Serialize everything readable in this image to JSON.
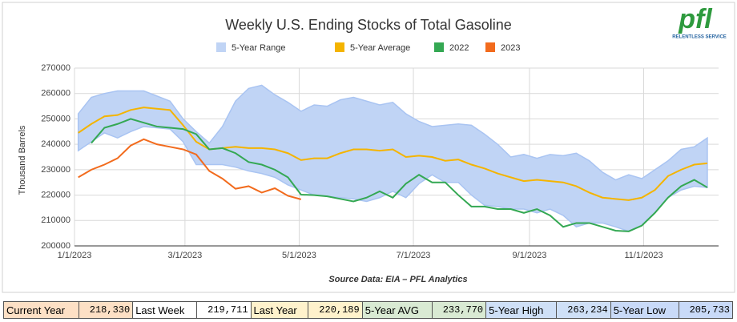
{
  "chart_data": {
    "type": "line",
    "title": "Weekly U.S. Ending Stocks of Total Gasoline",
    "y_label": "Thousand Barrels",
    "source": "Source Data: EIA – PFL Analytics",
    "logo": {
      "text": "pfl",
      "tagline": "RELENTLESS SERVICE"
    },
    "x": [
      "2023-01-03",
      "2023-01-10",
      "2023-01-17",
      "2023-01-24",
      "2023-01-31",
      "2023-02-07",
      "2023-02-14",
      "2023-02-21",
      "2023-02-28",
      "2023-03-07",
      "2023-03-14",
      "2023-03-21",
      "2023-03-28",
      "2023-04-04",
      "2023-04-11",
      "2023-04-18",
      "2023-04-25",
      "2023-05-02",
      "2023-05-09",
      "2023-05-16",
      "2023-05-23",
      "2023-05-30",
      "2023-06-06",
      "2023-06-13",
      "2023-06-20",
      "2023-06-27",
      "2023-07-04",
      "2023-07-11",
      "2023-07-18",
      "2023-07-25",
      "2023-08-01",
      "2023-08-08",
      "2023-08-15",
      "2023-08-22",
      "2023-08-29",
      "2023-09-05",
      "2023-09-12",
      "2023-09-19",
      "2023-09-26",
      "2023-10-03",
      "2023-10-10",
      "2023-10-17",
      "2023-10-24",
      "2023-10-31",
      "2023-11-07",
      "2023-11-14",
      "2023-11-21",
      "2023-11-28",
      "2023-12-05"
    ],
    "xlim": [
      "2023-01-01",
      "2023-12-11"
    ],
    "xticks": [
      {
        "value": "2023-01-01",
        "label": "1/1/2023"
      },
      {
        "value": "2023-03-01",
        "label": "3/1/2023"
      },
      {
        "value": "2023-05-01",
        "label": "5/1/2023"
      },
      {
        "value": "2023-07-01",
        "label": "7/1/2023"
      },
      {
        "value": "2023-09-01",
        "label": "9/1/2023"
      },
      {
        "value": "2023-11-01",
        "label": "11/1/2023"
      }
    ],
    "ylim": [
      200000,
      270000
    ],
    "yticks": [
      200000,
      210000,
      220000,
      230000,
      240000,
      250000,
      260000,
      270000
    ],
    "grid": true,
    "legend": "top",
    "range": {
      "name": "5-Year Range",
      "color": "#c0d4f5",
      "stroke": "#a9c4f2",
      "upper": [
        252000,
        258500,
        260000,
        261000,
        261000,
        261000,
        259000,
        257000,
        250000,
        245000,
        240500,
        247000,
        257000,
        262000,
        263234,
        259500,
        256500,
        253000,
        255500,
        255000,
        257500,
        258500,
        257000,
        255500,
        256500,
        252000,
        249000,
        247000,
        247500,
        248000,
        247500,
        244000,
        240000,
        235000,
        236000,
        234500,
        236000,
        235500,
        236500,
        233500,
        229000,
        226000,
        228000,
        226500,
        230000,
        233500,
        238000,
        239000,
        242500
      ],
      "lower": [
        237500,
        241000,
        244500,
        242500,
        245000,
        247000,
        246500,
        246000,
        241000,
        232000,
        232000,
        232000,
        231000,
        229500,
        228500,
        227000,
        224000,
        222000,
        220000,
        219500,
        219000,
        218500,
        217500,
        219000,
        221500,
        219000,
        224500,
        228000,
        225000,
        225000,
        220000,
        216000,
        215500,
        214500,
        214500,
        213000,
        214500,
        212000,
        207500,
        209000,
        209000,
        207500,
        205733,
        208000,
        213000,
        219000,
        222000,
        223500,
        223000
      ]
    },
    "series": [
      {
        "name": "5-Year Average",
        "color": "#f4b400",
        "values": [
          244500,
          248000,
          251000,
          251500,
          253500,
          254500,
          254000,
          253500,
          247500,
          241000,
          238000,
          238500,
          239000,
          238500,
          238500,
          238000,
          236500,
          233770,
          234500,
          234500,
          236500,
          238000,
          238000,
          237500,
          238000,
          235000,
          235500,
          235000,
          233500,
          234000,
          232000,
          230500,
          228500,
          227000,
          225500,
          226000,
          225500,
          225000,
          223500,
          221000,
          219000,
          218500,
          218000,
          219000,
          222000,
          227500,
          230000,
          232000,
          232500
        ]
      },
      {
        "name": "2022",
        "color": "#34a853",
        "values": [
          null,
          240500,
          246500,
          248000,
          250000,
          248500,
          247000,
          246500,
          246000,
          244000,
          238000,
          238500,
          236500,
          233000,
          232000,
          230000,
          227000,
          220189,
          220000,
          219500,
          218500,
          217500,
          219000,
          221500,
          219000,
          224500,
          228000,
          225000,
          225000,
          220000,
          215500,
          215500,
          214500,
          214500,
          213000,
          214500,
          212000,
          207500,
          209000,
          209000,
          207500,
          206000,
          205733,
          208000,
          213000,
          219000,
          223500,
          226000,
          223000
        ]
      },
      {
        "name": "2023",
        "color": "#f26b1d",
        "values": [
          227000,
          230000,
          232000,
          234500,
          239500,
          242000,
          240000,
          239000,
          238000,
          236000,
          229500,
          226500,
          222500,
          223500,
          221000,
          222700,
          219711,
          218330,
          null,
          null,
          null,
          null,
          null,
          null,
          null,
          null,
          null,
          null,
          null,
          null,
          null,
          null,
          null,
          null,
          null,
          null,
          null,
          null,
          null,
          null,
          null,
          null,
          null,
          null,
          null,
          null,
          null,
          null,
          null
        ]
      }
    ]
  },
  "table": {
    "rows": [
      [
        "Current Year",
        "218,330",
        "Last Week",
        "219,711",
        "Last Year",
        "220,189",
        "5-Year AVG",
        "233,770",
        "5-Year High",
        "263,234",
        "5-Year Low",
        "205,733"
      ]
    ]
  }
}
